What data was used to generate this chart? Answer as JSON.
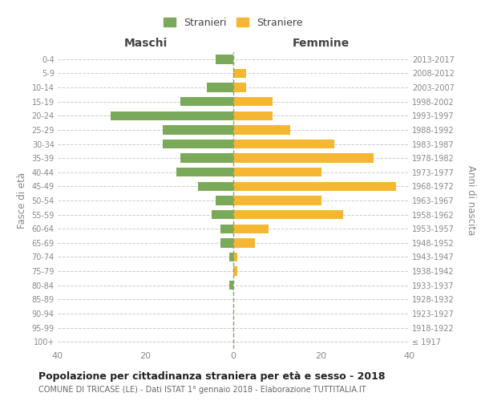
{
  "age_groups": [
    "100+",
    "95-99",
    "90-94",
    "85-89",
    "80-84",
    "75-79",
    "70-74",
    "65-69",
    "60-64",
    "55-59",
    "50-54",
    "45-49",
    "40-44",
    "35-39",
    "30-34",
    "25-29",
    "20-24",
    "15-19",
    "10-14",
    "5-9",
    "0-4"
  ],
  "birth_years": [
    "≤ 1917",
    "1918-1922",
    "1923-1927",
    "1928-1932",
    "1933-1937",
    "1938-1942",
    "1943-1947",
    "1948-1952",
    "1953-1957",
    "1958-1962",
    "1963-1967",
    "1968-1972",
    "1973-1977",
    "1978-1982",
    "1983-1987",
    "1988-1992",
    "1993-1997",
    "1998-2002",
    "2003-2007",
    "2008-2012",
    "2013-2017"
  ],
  "maschi": [
    0,
    0,
    0,
    0,
    1,
    0,
    1,
    3,
    3,
    5,
    4,
    8,
    13,
    12,
    16,
    16,
    28,
    12,
    6,
    0,
    4
  ],
  "femmine": [
    0,
    0,
    0,
    0,
    0,
    1,
    1,
    5,
    8,
    25,
    20,
    37,
    20,
    32,
    23,
    13,
    9,
    9,
    3,
    3,
    0
  ],
  "color_maschi": "#7aaa59",
  "color_femmine": "#f5b731",
  "title": "Popolazione per cittadinanza straniera per età e sesso - 2018",
  "subtitle": "COMUNE DI TRICASE (LE) - Dati ISTAT 1° gennaio 2018 - Elaborazione TUTTITALIA.IT",
  "ylabel_left": "Fasce di età",
  "ylabel_right": "Anni di nascita",
  "xlabel_left": "Maschi",
  "xlabel_right": "Femmine",
  "xlim": 40,
  "background_color": "#ffffff",
  "legend_stranieri": "Stranieri",
  "legend_straniere": "Straniere",
  "grid_color": "#cccccc",
  "tick_color": "#888888",
  "label_color": "#444444",
  "center_line_color": "#999966"
}
